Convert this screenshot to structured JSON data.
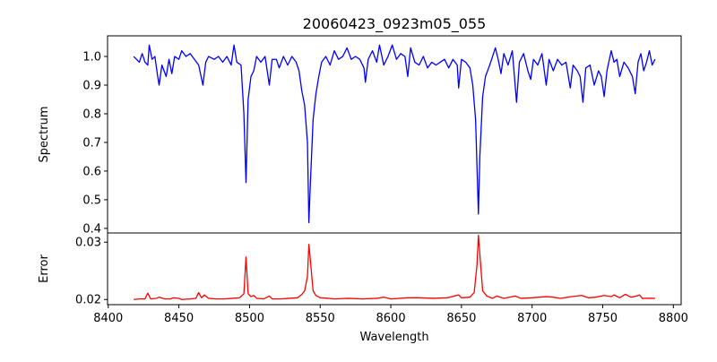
{
  "chart_data": [
    {
      "type": "line",
      "title": "20060423_0923m05_055",
      "xlabel": "",
      "ylabel": "Spectrum",
      "xlim": [
        8399.5,
        8805.5
      ],
      "ylim": [
        0.384,
        1.072
      ],
      "yticks": [
        "0.4",
        "0.5",
        "0.6",
        "0.7",
        "0.8",
        "0.9",
        "1.0"
      ],
      "ytick_values": [
        0.4,
        0.5,
        0.6,
        0.7,
        0.8,
        0.9,
        1.0
      ],
      "color": "#0000ff",
      "grid": false,
      "points": [
        [
          8418,
          1.0
        ],
        [
          8420,
          0.99
        ],
        [
          8422,
          0.98
        ],
        [
          8424,
          1.01
        ],
        [
          8426,
          0.98
        ],
        [
          8428,
          0.97
        ],
        [
          8429,
          1.04
        ],
        [
          8431,
          0.99
        ],
        [
          8433,
          1.0
        ],
        [
          8435,
          0.93
        ],
        [
          8436,
          0.9
        ],
        [
          8438,
          0.97
        ],
        [
          8441,
          0.93
        ],
        [
          8443,
          0.99
        ],
        [
          8445,
          0.94
        ],
        [
          8447,
          1.0
        ],
        [
          8450,
          0.99
        ],
        [
          8452,
          1.02
        ],
        [
          8455,
          1.0
        ],
        [
          8458,
          1.01
        ],
        [
          8461,
          0.99
        ],
        [
          8464,
          0.97
        ],
        [
          8467,
          0.9
        ],
        [
          8469,
          0.98
        ],
        [
          8471,
          1.0
        ],
        [
          8475,
          0.99
        ],
        [
          8478,
          1.0
        ],
        [
          8481,
          0.98
        ],
        [
          8484,
          1.0
        ],
        [
          8487,
          0.97
        ],
        [
          8489,
          1.04
        ],
        [
          8491,
          0.98
        ],
        [
          8494,
          0.97
        ],
        [
          8496,
          0.8
        ],
        [
          8497.5,
          0.56
        ],
        [
          8499,
          0.85
        ],
        [
          8501,
          0.93
        ],
        [
          8503,
          0.95
        ],
        [
          8505,
          1.0
        ],
        [
          8508,
          0.98
        ],
        [
          8511,
          1.0
        ],
        [
          8514,
          0.9
        ],
        [
          8516,
          0.99
        ],
        [
          8519,
          0.99
        ],
        [
          8521,
          0.96
        ],
        [
          8524,
          1.0
        ],
        [
          8527,
          0.97
        ],
        [
          8530,
          1.0
        ],
        [
          8533,
          0.98
        ],
        [
          8535,
          0.95
        ],
        [
          8537,
          0.88
        ],
        [
          8539,
          0.83
        ],
        [
          8541,
          0.7
        ],
        [
          8542,
          0.42
        ],
        [
          8543,
          0.55
        ],
        [
          8545,
          0.78
        ],
        [
          8547,
          0.87
        ],
        [
          8549,
          0.93
        ],
        [
          8551,
          0.98
        ],
        [
          8554,
          1.0
        ],
        [
          8557,
          0.97
        ],
        [
          8560,
          1.02
        ],
        [
          8563,
          0.99
        ],
        [
          8566,
          1.0
        ],
        [
          8569,
          1.03
        ],
        [
          8572,
          0.99
        ],
        [
          8575,
          1.0
        ],
        [
          8578,
          0.99
        ],
        [
          8581,
          0.96
        ],
        [
          8582,
          0.91
        ],
        [
          8584,
          0.99
        ],
        [
          8587,
          1.02
        ],
        [
          8590,
          0.98
        ],
        [
          8592,
          1.04
        ],
        [
          8595,
          0.97
        ],
        [
          8598,
          1.0
        ],
        [
          8601,
          1.04
        ],
        [
          8604,
          0.99
        ],
        [
          8607,
          1.01
        ],
        [
          8610,
          1.0
        ],
        [
          8612,
          0.93
        ],
        [
          8614,
          1.03
        ],
        [
          8617,
          0.98
        ],
        [
          8620,
          0.97
        ],
        [
          8623,
          1.0
        ],
        [
          8626,
          0.96
        ],
        [
          8629,
          0.98
        ],
        [
          8632,
          0.97
        ],
        [
          8635,
          0.98
        ],
        [
          8638,
          0.99
        ],
        [
          8641,
          0.96
        ],
        [
          8644,
          0.99
        ],
        [
          8647,
          0.97
        ],
        [
          8648,
          0.89
        ],
        [
          8650,
          0.99
        ],
        [
          8653,
          0.98
        ],
        [
          8656,
          0.96
        ],
        [
          8658,
          0.9
        ],
        [
          8660,
          0.78
        ],
        [
          8662,
          0.45
        ],
        [
          8663,
          0.65
        ],
        [
          8665,
          0.86
        ],
        [
          8667,
          0.93
        ],
        [
          8670,
          0.97
        ],
        [
          8672,
          1.0
        ],
        [
          8674,
          1.03
        ],
        [
          8676,
          0.99
        ],
        [
          8678,
          0.94
        ],
        [
          8680,
          1.01
        ],
        [
          8683,
          0.97
        ],
        [
          8686,
          1.02
        ],
        [
          8689,
          0.84
        ],
        [
          8691,
          0.98
        ],
        [
          8694,
          1.01
        ],
        [
          8697,
          0.95
        ],
        [
          8699,
          0.92
        ],
        [
          8701,
          0.99
        ],
        [
          8704,
          0.97
        ],
        [
          8707,
          1.01
        ],
        [
          8710,
          0.9
        ],
        [
          8712,
          0.99
        ],
        [
          8715,
          0.95
        ],
        [
          8718,
          0.99
        ],
        [
          8721,
          0.97
        ],
        [
          8724,
          0.98
        ],
        [
          8727,
          0.89
        ],
        [
          8729,
          0.97
        ],
        [
          8732,
          0.95
        ],
        [
          8734,
          0.93
        ],
        [
          8736,
          0.84
        ],
        [
          8738,
          0.96
        ],
        [
          8741,
          0.97
        ],
        [
          8744,
          0.9
        ],
        [
          8747,
          0.95
        ],
        [
          8749,
          0.93
        ],
        [
          8751,
          0.86
        ],
        [
          8753,
          0.95
        ],
        [
          8756,
          1.02
        ],
        [
          8758,
          0.98
        ],
        [
          8760,
          0.99
        ],
        [
          8762,
          0.93
        ],
        [
          8765,
          0.98
        ],
        [
          8768,
          0.96
        ],
        [
          8771,
          0.93
        ],
        [
          8773,
          0.87
        ],
        [
          8775,
          0.98
        ],
        [
          8777,
          1.01
        ],
        [
          8779,
          0.95
        ],
        [
          8781,
          0.98
        ],
        [
          8783,
          1.02
        ],
        [
          8785,
          0.97
        ],
        [
          8787,
          0.99
        ]
      ]
    },
    {
      "type": "line",
      "title": "",
      "xlabel": "Wavelength",
      "ylabel": "Error",
      "xlim": [
        8399.5,
        8805.5
      ],
      "ylim": [
        0.0191,
        0.0316
      ],
      "xticks": [
        "8400",
        "8450",
        "8500",
        "8550",
        "8600",
        "8650",
        "8700",
        "8750",
        "8800"
      ],
      "xtick_values": [
        8400,
        8450,
        8500,
        8550,
        8600,
        8650,
        8700,
        8750,
        8800
      ],
      "yticks": [
        "0.02",
        "0.03"
      ],
      "ytick_values": [
        0.02,
        0.03
      ],
      "color": "#ff0000",
      "grid": false,
      "points": [
        [
          8418,
          0.02
        ],
        [
          8422,
          0.0201
        ],
        [
          8426,
          0.0201
        ],
        [
          8428,
          0.0211
        ],
        [
          8430,
          0.0201
        ],
        [
          8434,
          0.0202
        ],
        [
          8436,
          0.0204
        ],
        [
          8440,
          0.0201
        ],
        [
          8444,
          0.0201
        ],
        [
          8446,
          0.0203
        ],
        [
          8450,
          0.0202
        ],
        [
          8452,
          0.02
        ],
        [
          8458,
          0.0201
        ],
        [
          8462,
          0.0202
        ],
        [
          8464,
          0.0212
        ],
        [
          8466,
          0.0203
        ],
        [
          8468,
          0.0208
        ],
        [
          8471,
          0.0202
        ],
        [
          8476,
          0.0201
        ],
        [
          8482,
          0.0201
        ],
        [
          8488,
          0.0202
        ],
        [
          8493,
          0.0203
        ],
        [
          8496,
          0.021
        ],
        [
          8497.5,
          0.0274
        ],
        [
          8499,
          0.021
        ],
        [
          8501,
          0.0205
        ],
        [
          8503,
          0.0207
        ],
        [
          8505,
          0.0202
        ],
        [
          8510,
          0.0201
        ],
        [
          8514,
          0.0206
        ],
        [
          8516,
          0.0201
        ],
        [
          8522,
          0.0201
        ],
        [
          8528,
          0.0202
        ],
        [
          8534,
          0.0203
        ],
        [
          8537,
          0.0209
        ],
        [
          8539,
          0.0215
        ],
        [
          8541,
          0.024
        ],
        [
          8542,
          0.0296
        ],
        [
          8543,
          0.027
        ],
        [
          8545,
          0.0215
        ],
        [
          8547,
          0.0207
        ],
        [
          8550,
          0.0203
        ],
        [
          8556,
          0.0202
        ],
        [
          8560,
          0.0201
        ],
        [
          8570,
          0.0202
        ],
        [
          8580,
          0.0201
        ],
        [
          8590,
          0.0202
        ],
        [
          8595,
          0.0204
        ],
        [
          8600,
          0.0201
        ],
        [
          8612,
          0.0203
        ],
        [
          8620,
          0.0203
        ],
        [
          8630,
          0.0202
        ],
        [
          8640,
          0.0203
        ],
        [
          8648,
          0.0208
        ],
        [
          8650,
          0.0203
        ],
        [
          8656,
          0.0204
        ],
        [
          8659,
          0.0212
        ],
        [
          8661,
          0.026
        ],
        [
          8662,
          0.0312
        ],
        [
          8663,
          0.028
        ],
        [
          8665,
          0.0215
        ],
        [
          8668,
          0.0206
        ],
        [
          8672,
          0.0202
        ],
        [
          8675,
          0.0206
        ],
        [
          8680,
          0.0202
        ],
        [
          8688,
          0.0206
        ],
        [
          8692,
          0.0202
        ],
        [
          8700,
          0.0203
        ],
        [
          8710,
          0.0205
        ],
        [
          8715,
          0.0204
        ],
        [
          8720,
          0.0202
        ],
        [
          8728,
          0.0205
        ],
        [
          8735,
          0.0207
        ],
        [
          8740,
          0.0203
        ],
        [
          8745,
          0.0204
        ],
        [
          8751,
          0.0207
        ],
        [
          8756,
          0.0205
        ],
        [
          8758,
          0.0208
        ],
        [
          8762,
          0.0203
        ],
        [
          8766,
          0.0209
        ],
        [
          8770,
          0.0204
        ],
        [
          8774,
          0.0206
        ],
        [
          8776,
          0.0208
        ],
        [
          8778,
          0.0202
        ],
        [
          8787,
          0.0202
        ]
      ]
    }
  ]
}
